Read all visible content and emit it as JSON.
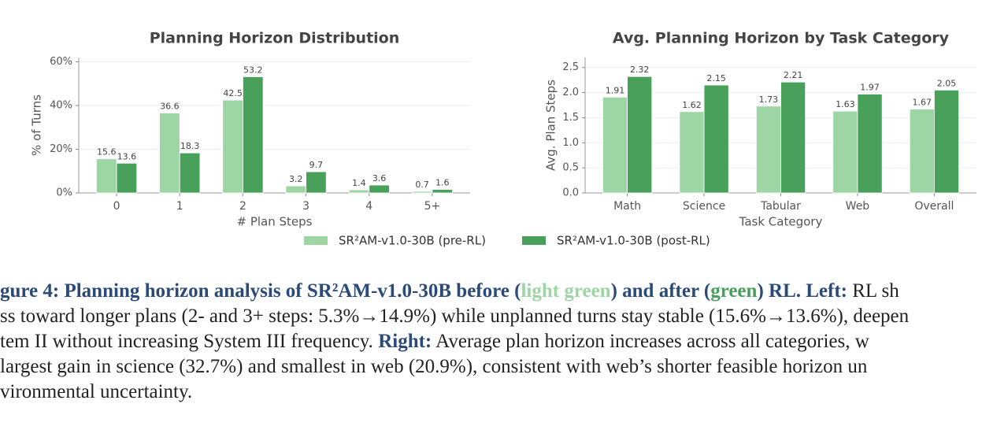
{
  "chart_data": [
    {
      "type": "bar",
      "title": "Planning Horizon Distribution",
      "x_label": "# Plan Steps",
      "y_label": "% of Turns",
      "categories": [
        "0",
        "1",
        "2",
        "3",
        "4",
        "5+"
      ],
      "series": [
        {
          "name": "SR²AM-v1.0-30B (pre-RL)",
          "color": "#9dd5a4",
          "values": [
            15.6,
            36.6,
            42.5,
            3.2,
            1.4,
            0.7
          ]
        },
        {
          "name": "SR²AM-v1.0-30B (post-RL)",
          "color": "#48a05a",
          "values": [
            13.6,
            18.3,
            53.2,
            9.7,
            3.6,
            1.6
          ]
        }
      ],
      "ylim": [
        0,
        62
      ],
      "yticks": [
        {
          "value": 0,
          "label": "0%"
        },
        {
          "value": 20,
          "label": "20%"
        },
        {
          "value": 40,
          "label": "40%"
        },
        {
          "value": 60,
          "label": "60%"
        }
      ],
      "grid": true,
      "legend": "bottom"
    },
    {
      "type": "bar",
      "title": "Avg. Planning Horizon by Task Category",
      "x_label": "Task Category",
      "y_label": "Avg. Plan Steps",
      "categories": [
        "Math",
        "Science",
        "Tabular",
        "Web",
        "Overall"
      ],
      "series": [
        {
          "color": "#9dd5a4",
          "values": [
            1.91,
            1.62,
            1.73,
            1.63,
            1.67
          ]
        },
        {
          "color": "#48a05a",
          "values": [
            2.32,
            2.15,
            2.21,
            1.97,
            2.05
          ]
        }
      ],
      "ylim": [
        0,
        2.7
      ],
      "yticks": [
        {
          "value": 0,
          "label": "0.0"
        },
        {
          "value": 0.5,
          "label": "0.5"
        },
        {
          "value": 1,
          "label": "1.0"
        },
        {
          "value": 1.5,
          "label": "1.5"
        },
        {
          "value": 2,
          "label": "2.0"
        },
        {
          "value": 2.5,
          "label": "2.5"
        }
      ],
      "grid": true
    }
  ],
  "caption": {
    "line1": [
      "gure 4: Planning horizon analysis of SR²AM-v1.0-30B before (",
      "light green",
      ") and after (",
      "green",
      ") RL. Left:",
      " RL sh"
    ],
    "line2": "ss toward longer plans (2- and 3+ steps: 5.3%→14.9%) while unplanned turns stay stable (15.6%→13.6%), deepen",
    "line3": [
      "tem II without increasing System III frequency.  ",
      "Right:",
      " Average plan horizon increases across all categories, w"
    ],
    "line4": " largest gain in science (32.7%) and smallest in web (20.9%), consistent with web’s shorter feasible horizon un",
    "line5": "vironmental uncertainty."
  }
}
